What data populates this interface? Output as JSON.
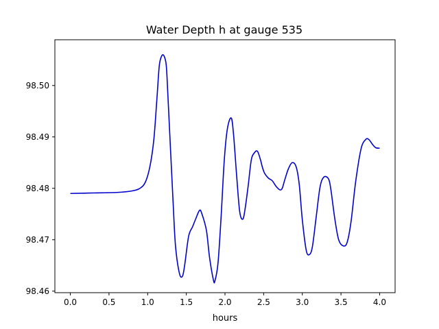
{
  "chart_data": {
    "type": "line",
    "title": "Water Depth h at gauge 535",
    "xlabel": "hours",
    "ylabel": "",
    "xlim": [
      -0.2,
      4.2
    ],
    "ylim": [
      98.4597,
      98.5089
    ],
    "x_ticks": [
      0.0,
      0.5,
      1.0,
      1.5,
      2.0,
      2.5,
      3.0,
      3.5,
      4.0
    ],
    "x_tick_labels": [
      "0.0",
      "0.5",
      "1.0",
      "1.5",
      "2.0",
      "2.5",
      "3.0",
      "3.5",
      "4.0"
    ],
    "y_ticks": [
      98.46,
      98.47,
      98.48,
      98.49,
      98.5
    ],
    "y_tick_labels": [
      "98.46",
      "98.47",
      "98.48",
      "98.49",
      "98.50"
    ],
    "grid": false,
    "series": [
      {
        "color": "#0000cc",
        "x": [
          0.0,
          0.3,
          0.6,
          0.8,
          0.9,
          0.97,
          1.03,
          1.08,
          1.12,
          1.15,
          1.18,
          1.21,
          1.24,
          1.26,
          1.29,
          1.33,
          1.36,
          1.41,
          1.45,
          1.48,
          1.53,
          1.58,
          1.62,
          1.67,
          1.7,
          1.76,
          1.8,
          1.85,
          1.87,
          1.91,
          1.95,
          1.99,
          2.03,
          2.08,
          2.11,
          2.15,
          2.19,
          2.23,
          2.26,
          2.3,
          2.34,
          2.38,
          2.42,
          2.46,
          2.48,
          2.51,
          2.56,
          2.61,
          2.66,
          2.71,
          2.74,
          2.77,
          2.82,
          2.87,
          2.92,
          2.96,
          3.0,
          3.05,
          3.09,
          3.13,
          3.18,
          3.23,
          3.28,
          3.34,
          3.37,
          3.42,
          3.47,
          3.53,
          3.58,
          3.63,
          3.69,
          3.76,
          3.82,
          3.86,
          3.91,
          3.95,
          4.0
        ],
        "y": [
          98.479,
          98.4791,
          98.4792,
          98.4795,
          98.48,
          98.4812,
          98.4843,
          98.4895,
          98.4975,
          98.5038,
          98.5057,
          98.5058,
          98.504,
          98.4986,
          98.4893,
          98.477,
          98.4688,
          98.4635,
          98.4629,
          98.4652,
          98.4707,
          98.4725,
          98.474,
          98.4757,
          98.4751,
          98.4718,
          98.4666,
          98.4622,
          98.462,
          98.4655,
          98.4745,
          98.4853,
          98.4915,
          98.4937,
          98.4906,
          98.4826,
          98.4755,
          98.474,
          98.476,
          98.4805,
          98.4855,
          98.4869,
          98.4872,
          98.4855,
          98.4843,
          98.483,
          98.482,
          98.4815,
          98.4804,
          98.4797,
          98.48,
          98.4815,
          98.4838,
          98.485,
          98.4842,
          98.4808,
          98.4739,
          98.468,
          98.4671,
          98.4686,
          98.4745,
          98.4803,
          98.4822,
          98.4818,
          98.4797,
          98.4741,
          98.47,
          98.4688,
          98.4695,
          98.4735,
          98.4813,
          98.4877,
          98.4895,
          98.4895,
          98.4885,
          98.4879,
          98.4878
        ]
      }
    ]
  }
}
